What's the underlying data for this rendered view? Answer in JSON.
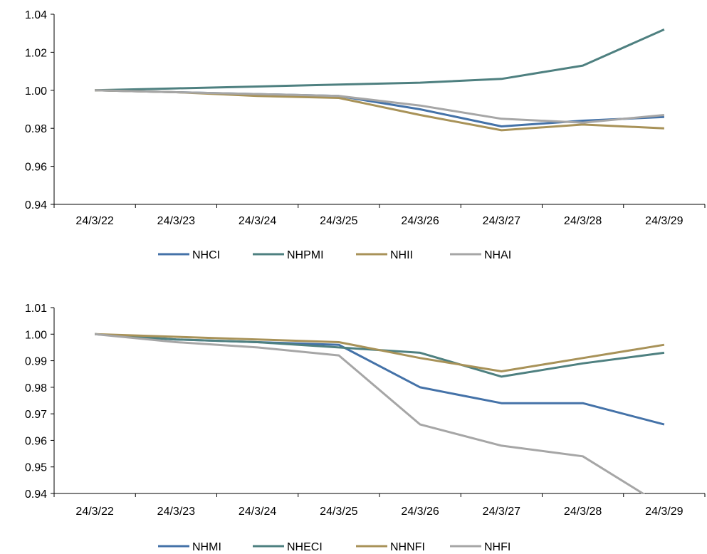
{
  "chart_data": [
    {
      "type": "line",
      "categories": [
        "24/3/22",
        "24/3/23",
        "24/3/24",
        "24/3/25",
        "24/3/26",
        "24/3/27",
        "24/3/28",
        "24/3/29"
      ],
      "ylim": [
        0.94,
        1.04
      ],
      "yticks": [
        0.94,
        0.96,
        0.98,
        1.0,
        1.02,
        1.04
      ],
      "ytick_labels": [
        "0.94",
        "0.96",
        "0.98",
        "1.00",
        "1.02",
        "1.04"
      ],
      "grid": false,
      "legend": "bottom",
      "series": [
        {
          "name": "NHCI",
          "color": "#4472A8",
          "values": [
            1.0,
            0.999,
            0.998,
            0.997,
            0.99,
            0.981,
            0.984,
            0.986
          ]
        },
        {
          "name": "NHPMI",
          "color": "#4E8080",
          "values": [
            1.0,
            1.001,
            1.002,
            1.003,
            1.004,
            1.006,
            1.013,
            1.032
          ]
        },
        {
          "name": "NHII",
          "color": "#A89258",
          "values": [
            1.0,
            0.999,
            0.997,
            0.996,
            0.987,
            0.979,
            0.982,
            0.98
          ]
        },
        {
          "name": "NHAI",
          "color": "#A6A6A6",
          "values": [
            1.0,
            0.999,
            0.998,
            0.997,
            0.992,
            0.985,
            0.983,
            0.987
          ]
        }
      ]
    },
    {
      "type": "line",
      "categories": [
        "24/3/22",
        "24/3/23",
        "24/3/24",
        "24/3/25",
        "24/3/26",
        "24/3/27",
        "24/3/28",
        "24/3/29"
      ],
      "ylim": [
        0.94,
        1.01
      ],
      "yticks": [
        0.94,
        0.95,
        0.96,
        0.97,
        0.98,
        0.99,
        1.0,
        1.01
      ],
      "ytick_labels": [
        "0.94",
        "0.95",
        "0.96",
        "0.97",
        "0.98",
        "0.99",
        "1.00",
        "1.01"
      ],
      "grid": false,
      "legend": "bottom",
      "series": [
        {
          "name": "NHMI",
          "color": "#4472A8",
          "values": [
            1.0,
            0.998,
            0.997,
            0.996,
            0.98,
            0.974,
            0.974,
            0.966
          ]
        },
        {
          "name": "NHECI",
          "color": "#4E8080",
          "values": [
            1.0,
            0.998,
            0.997,
            0.995,
            0.993,
            0.984,
            0.989,
            0.993
          ]
        },
        {
          "name": "NHNFI",
          "color": "#A89258",
          "values": [
            1.0,
            0.999,
            0.998,
            0.997,
            0.991,
            0.986,
            0.991,
            0.996
          ]
        },
        {
          "name": "NHFI",
          "color": "#A6A6A6",
          "values": [
            1.0,
            0.997,
            0.995,
            0.992,
            0.966,
            0.958,
            0.954,
            0.935
          ]
        }
      ]
    }
  ]
}
